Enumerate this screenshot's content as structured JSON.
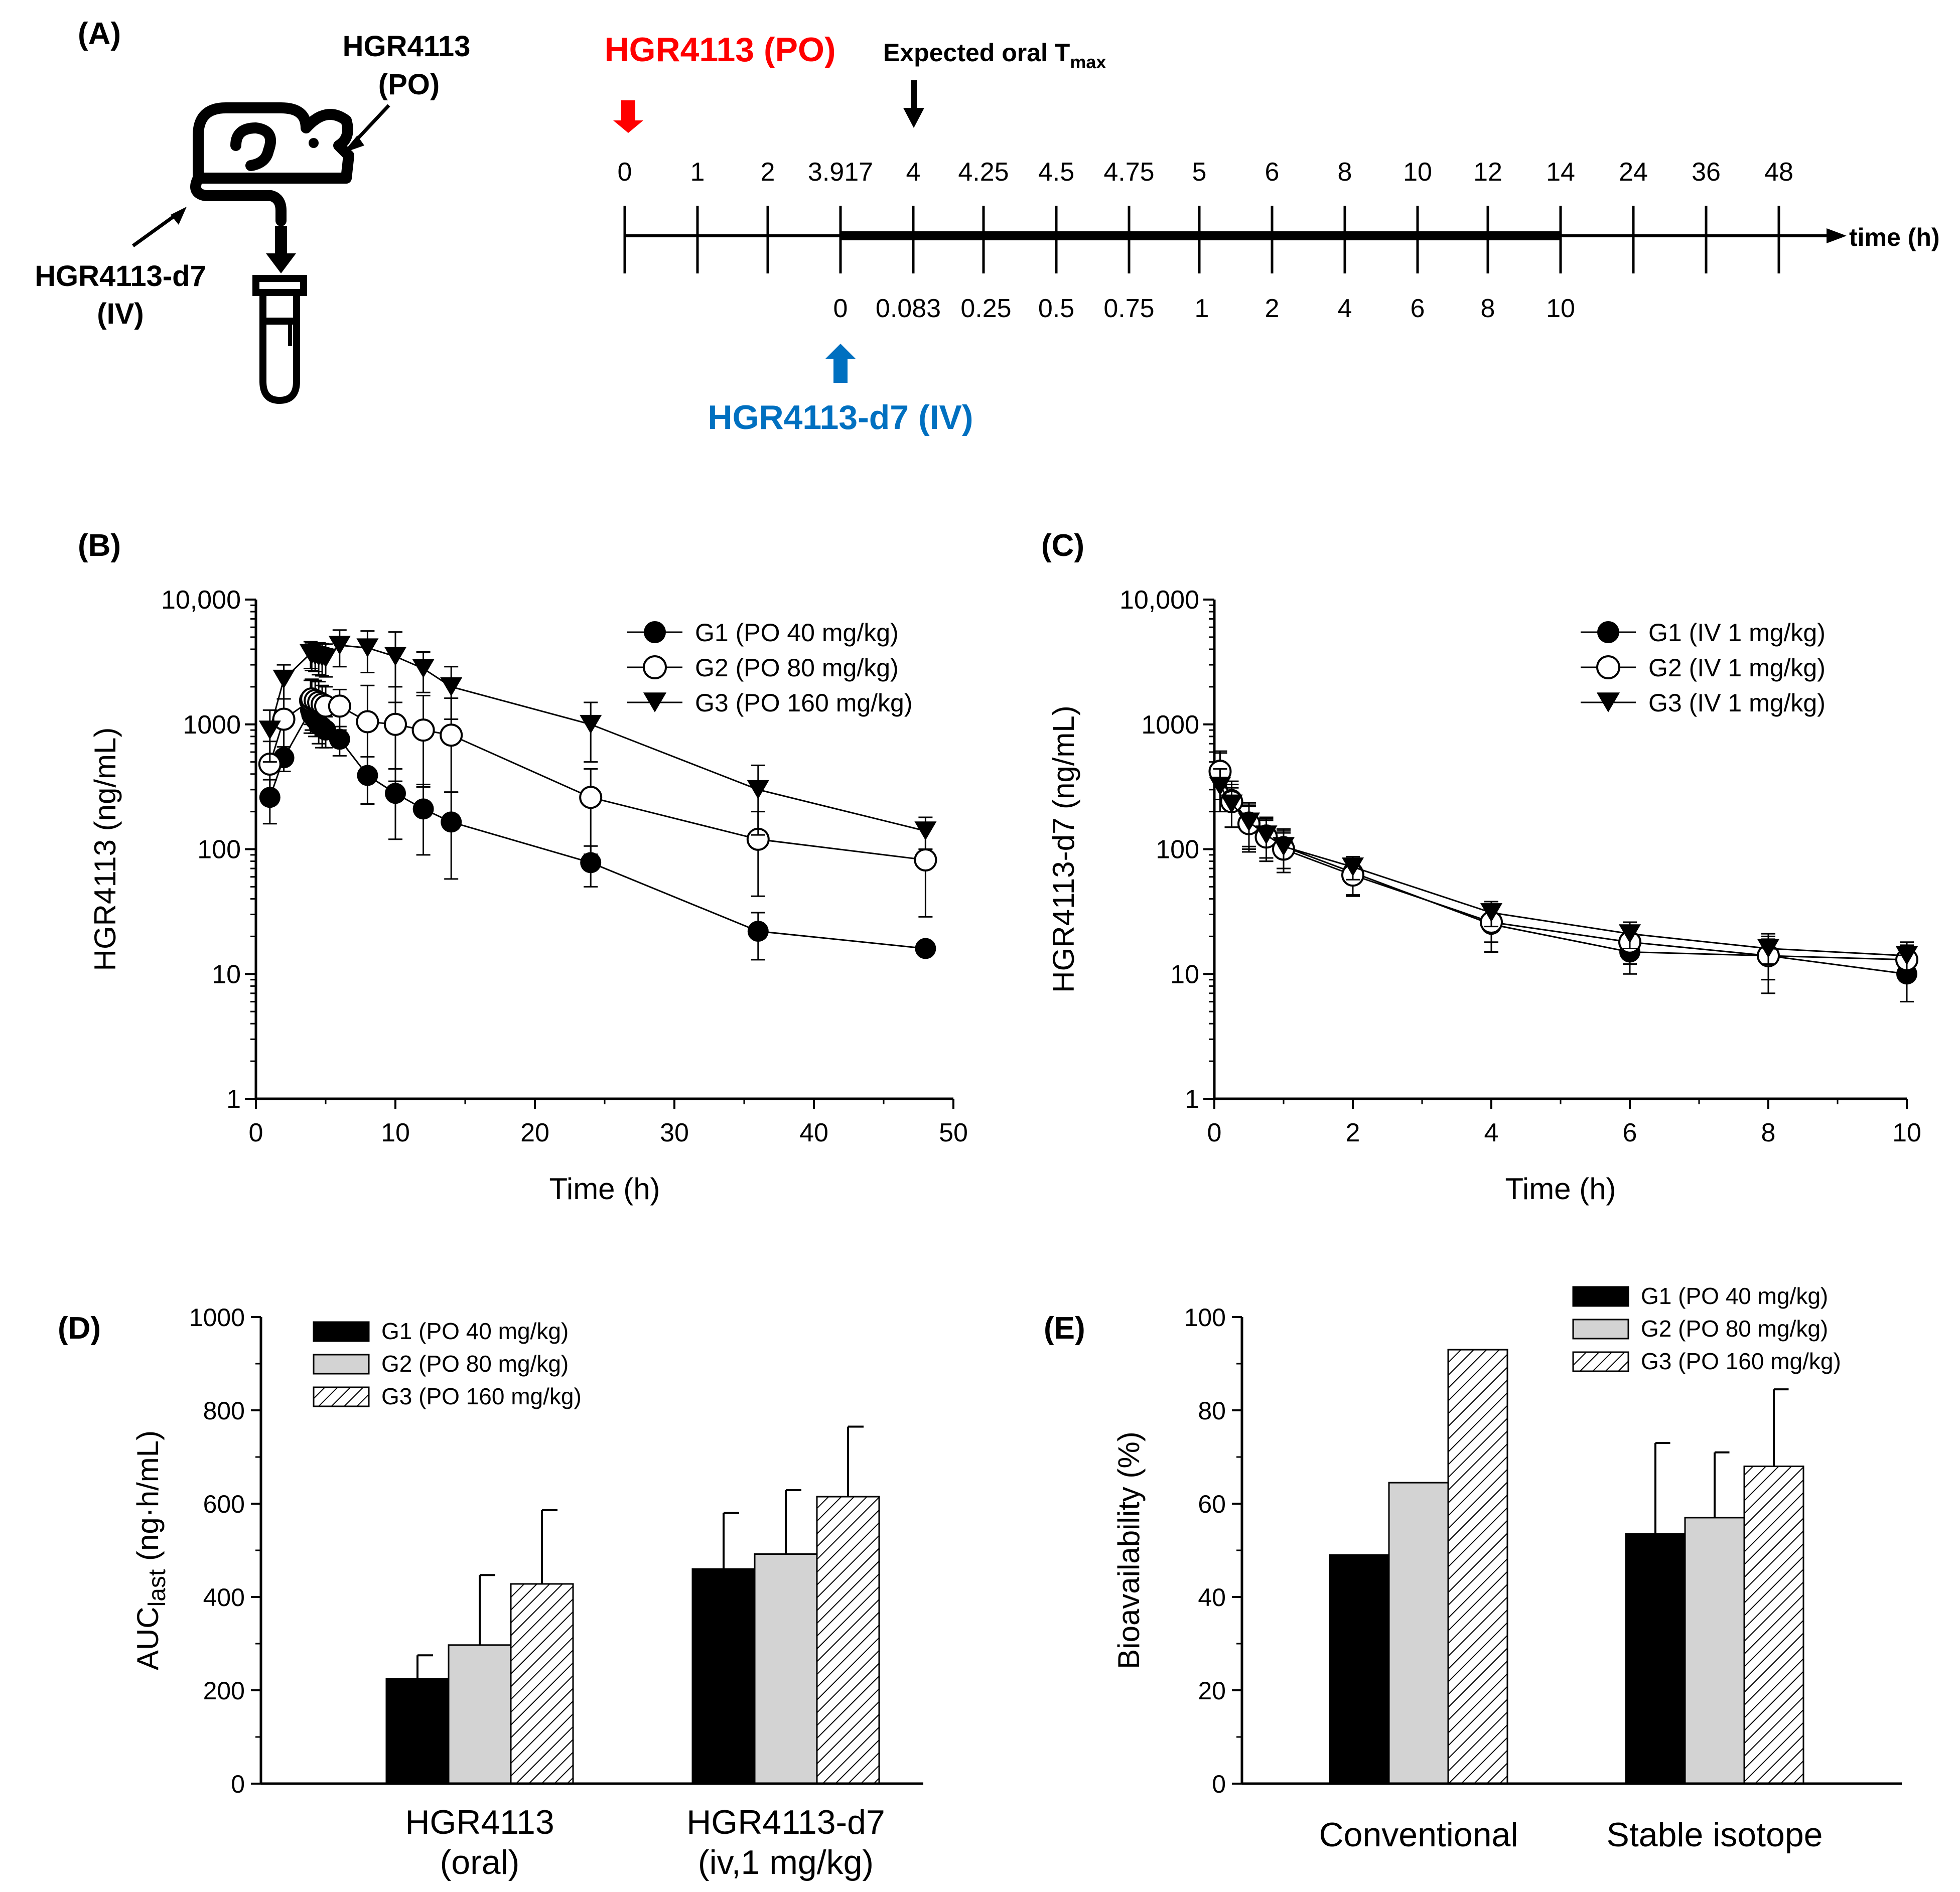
{
  "panels": {
    "A": "(A)",
    "B": "(B)",
    "C": "(C)",
    "D": "(D)",
    "E": "(E)"
  },
  "schema": {
    "po_label_line1": "HGR4113",
    "po_label_line2": "(PO)",
    "iv_label_line1": "HGR4113-d7",
    "iv_label_line2": "(IV)",
    "po_arrow_label": "HGR4113 (PO)",
    "iv_arrow_label": "HGR4113-d7 (IV)",
    "tmax_label": "Expected oral T",
    "tmax_sub": "max",
    "axis_label": "time (h)",
    "po_times": [
      "0",
      "1",
      "2",
      "3.917",
      "4",
      "4.25",
      "4.5",
      "4.75",
      "5",
      "6",
      "8",
      "10",
      "12",
      "14",
      "24",
      "36",
      "48"
    ],
    "iv_times": [
      "0",
      "0.083",
      "0.25",
      "0.5",
      "0.75",
      "1",
      "2",
      "4",
      "6",
      "8",
      "10"
    ],
    "colors": {
      "po": "#ff0000",
      "iv": "#0070c0",
      "line": "#000000"
    }
  },
  "chart_data": [
    {
      "id": "B",
      "type": "scatter",
      "xlabel": "Time (h)",
      "ylabel": "HGR4113 (ng/mL)",
      "yscale": "log",
      "xlim": [
        0,
        50
      ],
      "ylim": [
        1,
        10000
      ],
      "xticks": [
        "0",
        "10",
        "20",
        "30",
        "40",
        "50"
      ],
      "yticks": [
        "1",
        "10",
        "100",
        "1000",
        "10,000"
      ],
      "series": [
        {
          "name": "G1 (PO 40 mg/kg)",
          "marker": "filled-circle",
          "x": [
            1,
            2,
            3.917,
            4,
            4.25,
            4.5,
            4.75,
            5,
            6,
            8,
            10,
            12,
            14,
            24,
            36,
            48
          ],
          "y": [
            260,
            540,
            1300,
            1200,
            1100,
            1000,
            950,
            900,
            760,
            390,
            280,
            210,
            165,
            78,
            22,
            16
          ],
          "err": [
            100,
            120,
            300,
            300,
            300,
            300,
            300,
            250,
            200,
            160,
            160,
            120,
            120,
            28,
            9,
            0
          ]
        },
        {
          "name": "G2 (PO 80 mg/kg)",
          "marker": "open-circle",
          "x": [
            1,
            2,
            3.917,
            4,
            4.25,
            4.5,
            4.75,
            5,
            6,
            8,
            10,
            12,
            14,
            24,
            36,
            48
          ],
          "y": [
            480,
            1100,
            1550,
            1600,
            1550,
            1500,
            1450,
            1400,
            1400,
            1050,
            1000,
            900,
            820,
            260,
            120,
            82
          ],
          "err": [
            250,
            500,
            700,
            700,
            700,
            700,
            600,
            600,
            500,
            1000,
            1000,
            800,
            800,
            180,
            80,
            80
          ]
        },
        {
          "name": "G3 (PO 160 mg/kg)",
          "marker": "filled-triangle-down",
          "x": [
            1,
            2,
            3.917,
            4,
            4.25,
            4.5,
            4.75,
            5,
            6,
            8,
            10,
            12,
            14,
            24,
            36,
            48
          ],
          "y": [
            900,
            2300,
            3700,
            3600,
            3550,
            3500,
            3450,
            3400,
            4300,
            4100,
            3500,
            2800,
            2000,
            1000,
            300,
            140
          ],
          "err": [
            400,
            700,
            900,
            900,
            900,
            1000,
            1000,
            1000,
            1400,
            1500,
            2000,
            1000,
            900,
            500,
            170,
            40
          ]
        }
      ]
    },
    {
      "id": "C",
      "type": "scatter",
      "xlabel": "Time (h)",
      "ylabel": "HGR4113-d7 (ng/mL)",
      "yscale": "log",
      "xlim": [
        0,
        10
      ],
      "ylim": [
        1,
        10000
      ],
      "xticks": [
        "0",
        "2",
        "4",
        "6",
        "8",
        "10"
      ],
      "yticks": [
        "1",
        "10",
        "100",
        "1000",
        "10,000"
      ],
      "series": [
        {
          "name": "G1 (IV 1 mg/kg)",
          "marker": "filled-circle",
          "x": [
            0.083,
            0.25,
            0.5,
            0.75,
            1,
            2,
            4,
            6,
            8,
            10
          ],
          "y": [
            430,
            250,
            165,
            130,
            105,
            65,
            25,
            15,
            14,
            10
          ],
          "err": [
            180,
            100,
            70,
            50,
            40,
            22,
            10,
            5,
            7,
            4
          ]
        },
        {
          "name": "G2 (IV 1 mg/kg)",
          "marker": "open-circle",
          "x": [
            0.083,
            0.25,
            0.5,
            0.75,
            1,
            2,
            4,
            6,
            8,
            10
          ],
          "y": [
            420,
            240,
            160,
            125,
            100,
            62,
            26,
            18,
            14,
            13
          ],
          "err": [
            170,
            90,
            60,
            45,
            35,
            20,
            8,
            6,
            5,
            4
          ]
        },
        {
          "name": "G3 (IV 1 mg/kg)",
          "marker": "filled-triangle-down",
          "x": [
            0.083,
            0.25,
            0.5,
            0.75,
            1,
            2,
            4,
            6,
            8,
            10
          ],
          "y": [
            320,
            230,
            165,
            130,
            105,
            72,
            31,
            21,
            16,
            14
          ],
          "err": [
            120,
            80,
            60,
            45,
            35,
            15,
            7,
            5,
            4,
            4
          ]
        }
      ]
    },
    {
      "id": "D",
      "type": "bar",
      "ylabel": "AUC",
      "ylabel_sub": "last",
      "ylabel_unit": " (ng·h/mL)",
      "ylim": [
        0,
        1000
      ],
      "yticks": [
        "0",
        "200",
        "400",
        "600",
        "800",
        "1000"
      ],
      "categories": [
        {
          "line1": "HGR4113",
          "line2": "(oral)"
        },
        {
          "line1": "HGR4113-d7",
          "line2": "(iv,1 mg/kg)"
        }
      ],
      "series": [
        {
          "name": "G1 (PO 40 mg/kg)",
          "fill": "black",
          "values": [
            225,
            460
          ],
          "err": [
            50,
            120
          ]
        },
        {
          "name": "G2 (PO 80 mg/kg)",
          "fill": "gray",
          "values": [
            297,
            492
          ],
          "err": [
            150,
            137
          ]
        },
        {
          "name": "G3 (PO 160 mg/kg)",
          "fill": "hatch",
          "values": [
            428,
            615
          ],
          "err": [
            158,
            150
          ]
        }
      ]
    },
    {
      "id": "E",
      "type": "bar",
      "ylabel": "Bioavailability (%)",
      "ylim": [
        0,
        100
      ],
      "yticks": [
        "0",
        "20",
        "40",
        "60",
        "80",
        "100"
      ],
      "categories": [
        {
          "line1": "Conventional"
        },
        {
          "line1": "Stable isotope"
        }
      ],
      "series": [
        {
          "name": "G1 (PO 40 mg/kg)",
          "fill": "black",
          "values": [
            49,
            53.5
          ],
          "err": [
            0,
            19.5
          ]
        },
        {
          "name": "G2 (PO 80 mg/kg)",
          "fill": "gray",
          "values": [
            64.5,
            57
          ],
          "err": [
            0,
            14
          ]
        },
        {
          "name": "G3 (PO 160 mg/kg)",
          "fill": "hatch",
          "values": [
            93,
            68
          ],
          "err": [
            0,
            16.5
          ]
        }
      ]
    }
  ]
}
